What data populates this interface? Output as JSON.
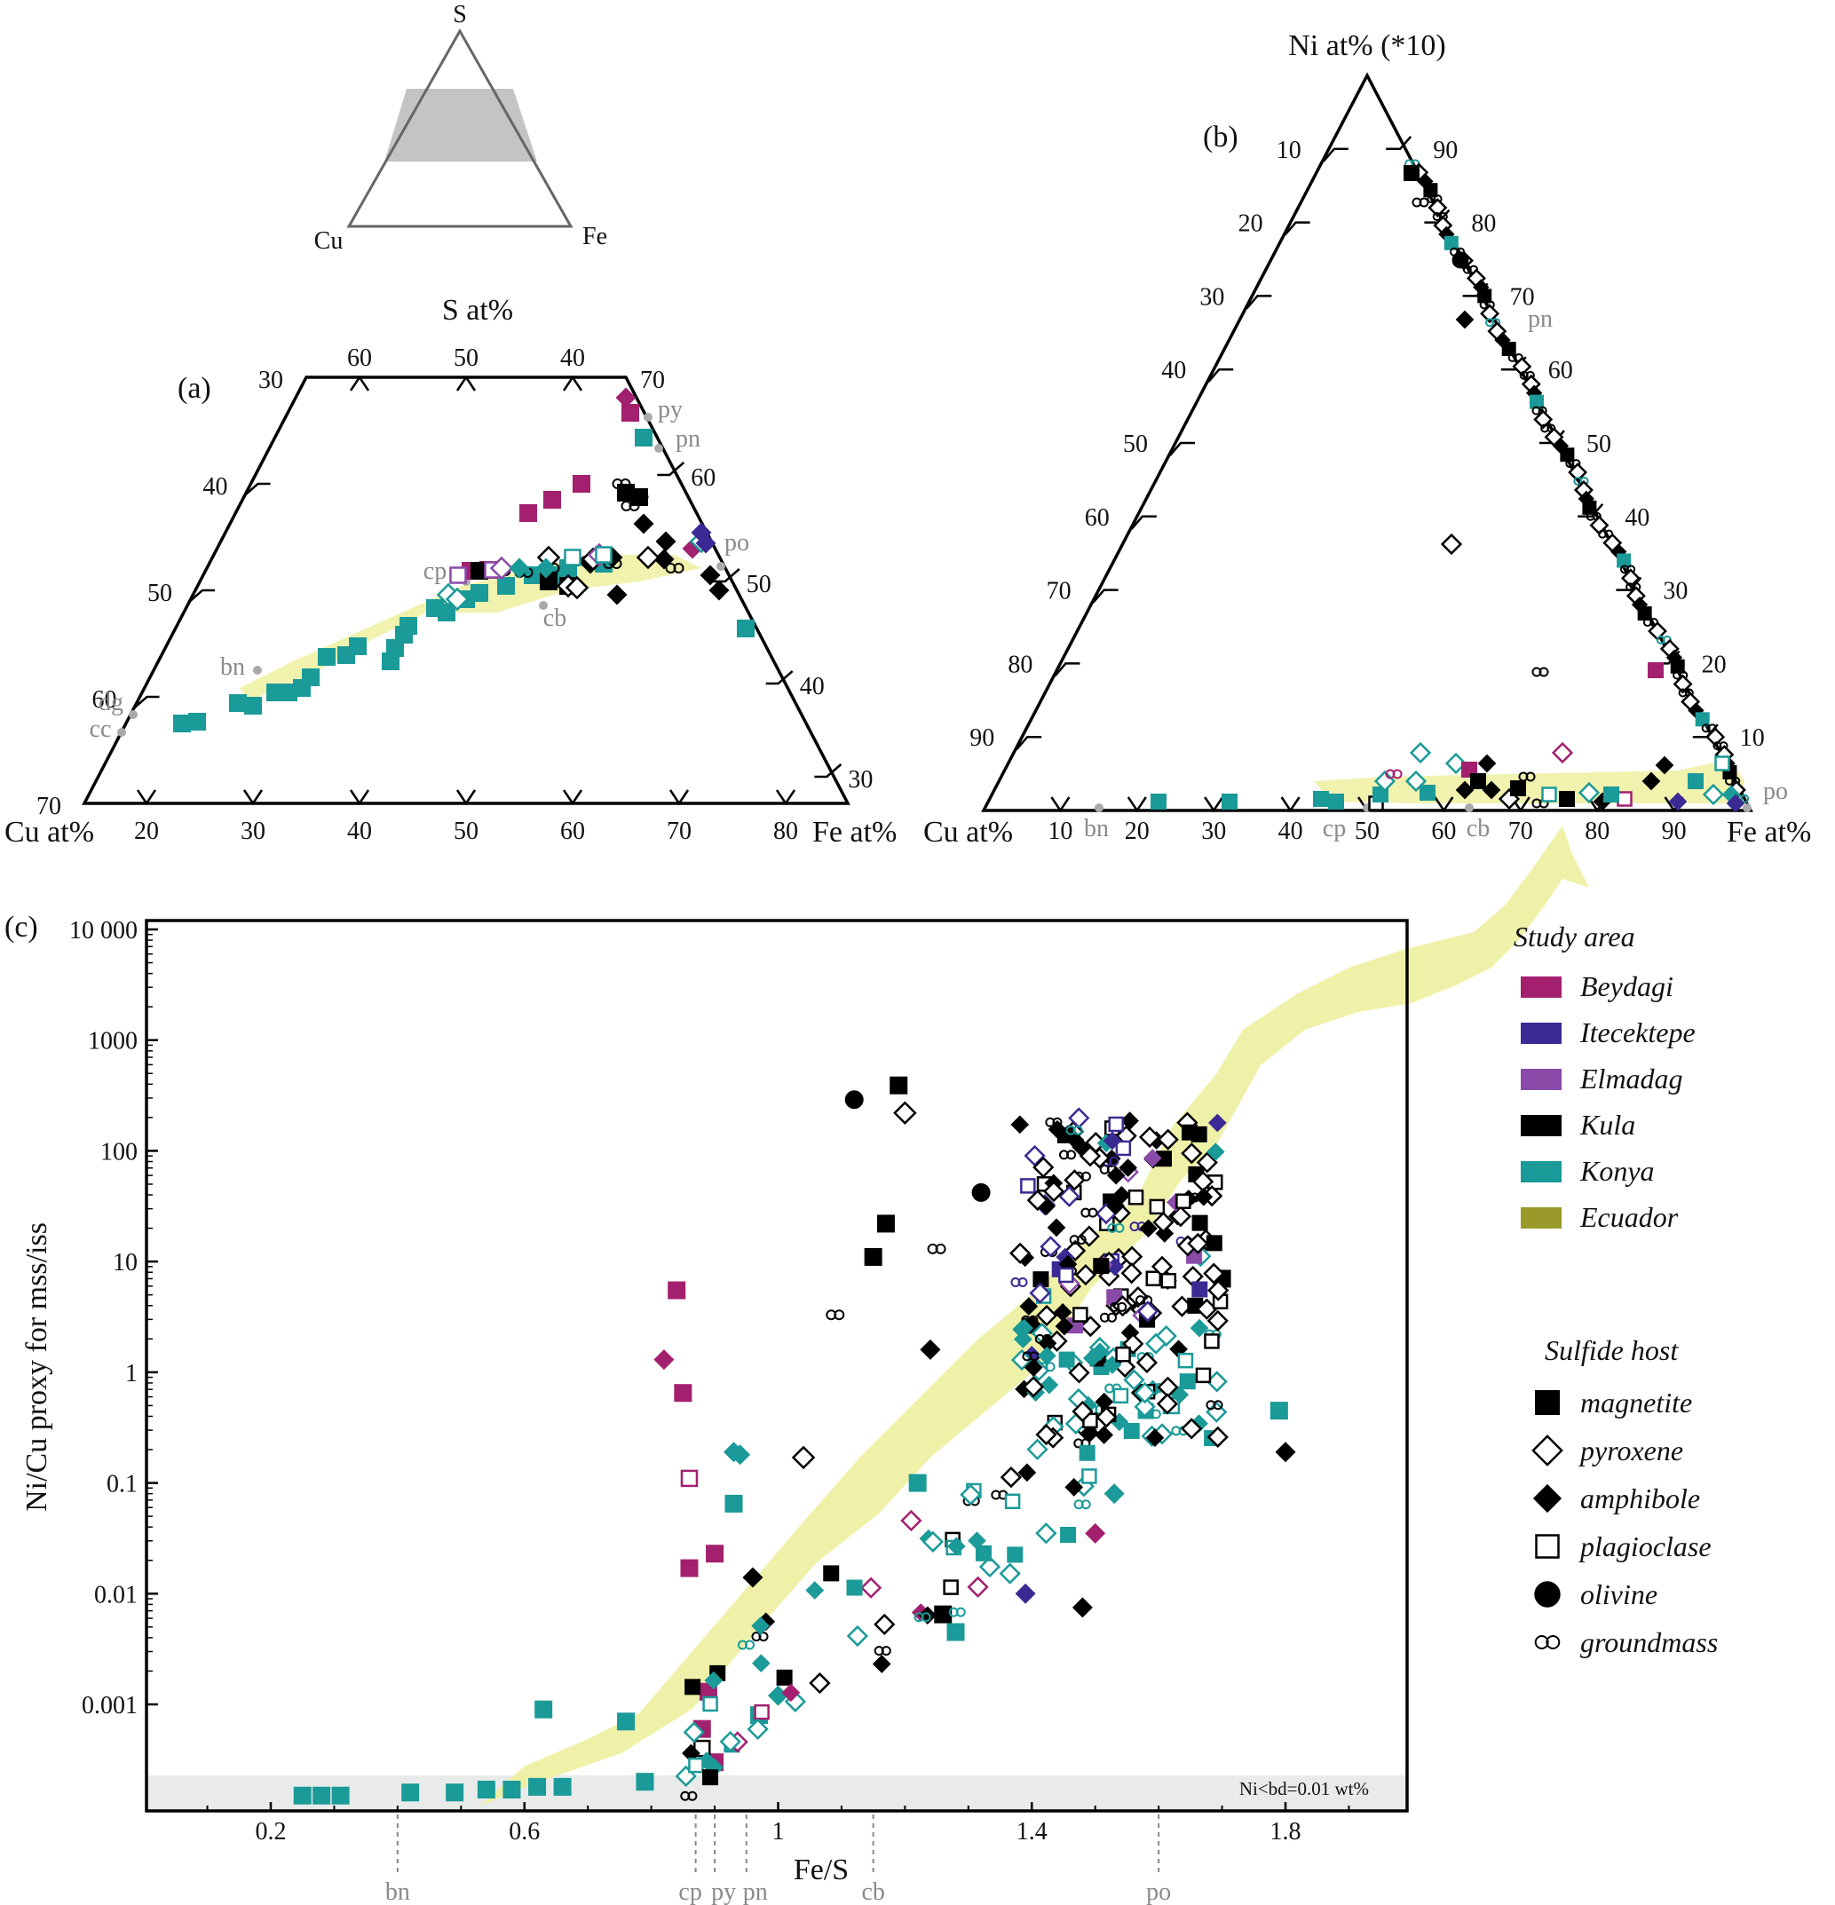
{
  "chart_data": [
    {
      "id": "inset",
      "type": "ternary-key",
      "vertices": {
        "top": "S",
        "left": "Cu",
        "right": "Fe"
      },
      "shaded_band": "S-rich band (~30-70 at% S) shown in panel (a)"
    },
    {
      "id": "a",
      "panel_label": "(a)",
      "type": "scatter-ternary",
      "title": "S at%",
      "axis_left_label": "Cu at%",
      "axis_right_label": "Fe at%",
      "s_ticks": [
        "30",
        "40",
        "50",
        "60",
        "70"
      ],
      "s_top_ticks": [
        "60",
        "50",
        "40"
      ],
      "bottom_ticks": [
        "20",
        "30",
        "40",
        "50",
        "60",
        "70",
        "80"
      ],
      "right_ticks": [
        "70",
        "60",
        "50",
        "40",
        "30"
      ],
      "minerals": [
        {
          "label": "py",
          "cu": 0,
          "fe": 33.3,
          "s": 66.7
        },
        {
          "label": "pn",
          "cu": 0,
          "fe": 36,
          "s": 64
        },
        {
          "label": "po",
          "cu": 0,
          "fe": 47,
          "s": 53
        },
        {
          "label": "cp",
          "cu": 25,
          "fe": 25,
          "s": 50
        },
        {
          "label": "cb",
          "cu": 17,
          "fe": 33,
          "s": 50
        },
        {
          "label": "bn",
          "cu": 50,
          "fe": 10,
          "s": 40
        },
        {
          "label": "dg",
          "cu": 64,
          "fe": 0,
          "s": 36
        },
        {
          "label": "cc",
          "cu": 66.7,
          "fe": 0,
          "s": 33.3
        }
      ]
    },
    {
      "id": "b",
      "panel_label": "(b)",
      "type": "scatter-ternary",
      "title": "Ni at% (*10)",
      "axis_left_label": "Cu at%",
      "axis_right_label": "Fe at%",
      "left_ticks": [
        "10",
        "20",
        "30",
        "40",
        "50",
        "60",
        "70",
        "80",
        "90"
      ],
      "right_ticks": [
        "90",
        "80",
        "70",
        "60",
        "50",
        "40",
        "30",
        "20",
        "10"
      ],
      "bottom_ticks": [
        "10",
        "20",
        "30",
        "40",
        "50",
        "60",
        "70",
        "80",
        "90"
      ],
      "minerals": [
        {
          "label": "pn",
          "pos": "right edge ~Ni 64"
        },
        {
          "label": "po",
          "pos": "Fe corner"
        },
        {
          "label": "bn",
          "pos": "bottom ~14"
        },
        {
          "label": "cp",
          "pos": "bottom ~50"
        },
        {
          "label": "cb",
          "pos": "bottom ~63"
        }
      ]
    },
    {
      "id": "c",
      "panel_label": "(c)",
      "type": "scatter",
      "xlabel": "Fe/S",
      "ylabel": "Ni/Cu proxy for mss/iss",
      "xlim": [
        0,
        2.0
      ],
      "ylim": [
        0.0001,
        10000
      ],
      "yscale": "log",
      "x_ticks": [
        "0.2",
        "0.6",
        "1",
        "1.4",
        "1.8"
      ],
      "y_ticks": [
        "0.001",
        "0.01",
        "0.1",
        "1",
        "10",
        "100",
        "1000",
        "10 000"
      ],
      "bd_band_label": "Ni<bd=0.01 wt%",
      "mineral_refs": [
        {
          "label": "bn",
          "x": 0.4
        },
        {
          "label": "cp",
          "x": 0.87
        },
        {
          "label": "py",
          "x": 0.9
        },
        {
          "label": "pn",
          "x": 0.95
        },
        {
          "label": "cb",
          "x": 1.15
        },
        {
          "label": "po",
          "x": 1.6
        }
      ],
      "legend": {
        "study_area_title": "Study area",
        "study_areas": [
          {
            "name": "Beydagi",
            "color": "#a3206f"
          },
          {
            "name": "Itecektepe",
            "color": "#3b2a93"
          },
          {
            "name": "Elmadag",
            "color": "#8a4aa8"
          },
          {
            "name": "Kula",
            "color": "#000000"
          },
          {
            "name": "Konya",
            "color": "#1a9a98"
          },
          {
            "name": "Ecuador",
            "color": "#9a9a2a"
          }
        ],
        "host_title": "Sulfide host",
        "hosts": [
          {
            "name": "magnetite",
            "symbol": "filled-square"
          },
          {
            "name": "pyroxene",
            "symbol": "open-diamond"
          },
          {
            "name": "amphibole",
            "symbol": "filled-diamond"
          },
          {
            "name": "plagioclase",
            "symbol": "open-square"
          },
          {
            "name": "olivine",
            "symbol": "filled-circle"
          },
          {
            "name": "groundmass",
            "symbol": "double-circle"
          }
        ]
      },
      "points": [
        {
          "x": 0.25,
          "y": 0.00015,
          "area": "Konya",
          "host": "magnetite"
        },
        {
          "x": 0.28,
          "y": 0.00015,
          "area": "Konya",
          "host": "magnetite"
        },
        {
          "x": 0.31,
          "y": 0.00015,
          "area": "Konya",
          "host": "magnetite"
        },
        {
          "x": 0.42,
          "y": 0.00016,
          "area": "Konya",
          "host": "magnetite"
        },
        {
          "x": 0.49,
          "y": 0.00016,
          "area": "Konya",
          "host": "magnetite"
        },
        {
          "x": 0.54,
          "y": 0.00017,
          "area": "Konya",
          "host": "magnetite"
        },
        {
          "x": 0.58,
          "y": 0.00017,
          "area": "Konya",
          "host": "magnetite"
        },
        {
          "x": 0.62,
          "y": 0.00018,
          "area": "Konya",
          "host": "magnetite"
        },
        {
          "x": 0.66,
          "y": 0.00018,
          "area": "Konya",
          "host": "magnetite"
        },
        {
          "x": 0.63,
          "y": 0.0009,
          "area": "Konya",
          "host": "magnetite"
        },
        {
          "x": 0.76,
          "y": 0.0007,
          "area": "Konya",
          "host": "magnetite"
        },
        {
          "x": 0.79,
          "y": 0.0002,
          "area": "Konya",
          "host": "magnetite"
        },
        {
          "x": 0.82,
          "y": 1.3,
          "area": "Beydagi",
          "host": "amphibole"
        },
        {
          "x": 0.84,
          "y": 5.5,
          "area": "Beydagi",
          "host": "magnetite"
        },
        {
          "x": 0.85,
          "y": 0.65,
          "area": "Beydagi",
          "host": "magnetite"
        },
        {
          "x": 0.86,
          "y": 0.11,
          "area": "Beydagi",
          "host": "plagioclase"
        },
        {
          "x": 0.86,
          "y": 0.017,
          "area": "Beydagi",
          "host": "magnetite"
        },
        {
          "x": 0.9,
          "y": 0.023,
          "area": "Beydagi",
          "host": "magnetite"
        },
        {
          "x": 0.88,
          "y": 0.0006,
          "area": "Beydagi",
          "host": "magnetite"
        },
        {
          "x": 0.89,
          "y": 0.0013,
          "area": "Beydagi",
          "host": "magnetite"
        },
        {
          "x": 0.9,
          "y": 0.0003,
          "area": "Beydagi",
          "host": "magnetite"
        },
        {
          "x": 0.88,
          "y": 0.0004,
          "area": "Kula",
          "host": "plagioclase"
        },
        {
          "x": 0.93,
          "y": 0.19,
          "area": "Konya",
          "host": "amphibole"
        },
        {
          "x": 0.94,
          "y": 0.18,
          "area": "Konya",
          "host": "amphibole"
        },
        {
          "x": 0.93,
          "y": 0.065,
          "area": "Konya",
          "host": "magnetite"
        },
        {
          "x": 0.96,
          "y": 0.014,
          "area": "Kula",
          "host": "amphibole"
        },
        {
          "x": 0.97,
          "y": 0.0008,
          "area": "Konya",
          "host": "magnetite"
        },
        {
          "x": 1.0,
          "y": 0.0012,
          "area": "Konya",
          "host": "amphibole"
        },
        {
          "x": 1.04,
          "y": 0.17,
          "area": "Kula",
          "host": "pyroxene"
        },
        {
          "x": 1.09,
          "y": 3.3,
          "area": "Kula",
          "host": "groundmass"
        },
        {
          "x": 1.12,
          "y": 290,
          "area": "Kula",
          "host": "olivine"
        },
        {
          "x": 1.15,
          "y": 11,
          "area": "Kula",
          "host": "magnetite"
        },
        {
          "x": 1.17,
          "y": 22,
          "area": "Kula",
          "host": "magnetite"
        },
        {
          "x": 1.19,
          "y": 390,
          "area": "Kula",
          "host": "magnetite"
        },
        {
          "x": 1.2,
          "y": 220,
          "area": "Kula",
          "host": "pyroxene"
        },
        {
          "x": 1.22,
          "y": 0.1,
          "area": "Konya",
          "host": "magnetite"
        },
        {
          "x": 1.24,
          "y": 1.6,
          "area": "Kula",
          "host": "amphibole"
        },
        {
          "x": 1.25,
          "y": 13,
          "area": "Kula",
          "host": "groundmass"
        },
        {
          "x": 1.26,
          "y": 0.0065,
          "area": "Kula",
          "host": "magnetite"
        },
        {
          "x": 1.28,
          "y": 0.0045,
          "area": "Konya",
          "host": "magnetite"
        },
        {
          "x": 1.32,
          "y": 42,
          "area": "Kula",
          "host": "olivine"
        },
        {
          "x": 1.39,
          "y": 0.01,
          "area": "Itecektepe",
          "host": "amphibole"
        },
        {
          "x": 1.4,
          "y": 1.4,
          "area": "Itecektepe",
          "host": "amphibole"
        },
        {
          "x": 1.48,
          "y": 0.0075,
          "area": "Kula",
          "host": "amphibole"
        },
        {
          "x": 1.5,
          "y": 0.035,
          "area": "Beydagi",
          "host": "amphibole"
        },
        {
          "x": 1.53,
          "y": 0.08,
          "area": "Konya",
          "host": "amphibole"
        },
        {
          "x": 1.62,
          "y": 0.5,
          "area": "Konya",
          "host": "plagioclase"
        },
        {
          "x": 1.7,
          "y": 7,
          "area": "Kula",
          "host": "magnetite"
        },
        {
          "x": 1.79,
          "y": 0.45,
          "area": "Konya",
          "host": "magnetite"
        },
        {
          "x": 1.8,
          "y": 0.19,
          "area": "Kula",
          "host": "amphibole"
        }
      ]
    }
  ]
}
